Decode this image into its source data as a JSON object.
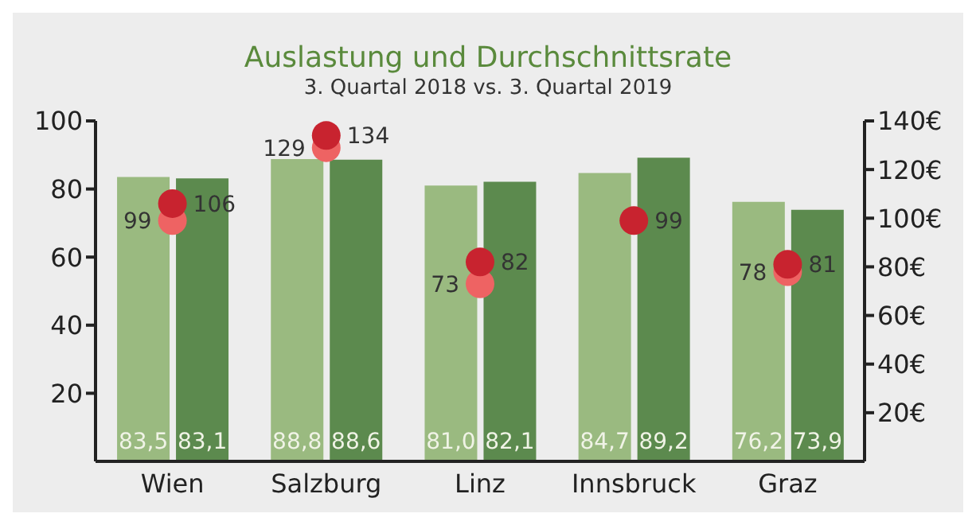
{
  "chart_data": {
    "type": "bar",
    "title": "Auslastung und Durchschnittsrate",
    "subtitle": "3. Quartal 2018 vs. 3. Quartal 2019",
    "categories": [
      "Wien",
      "Salzburg",
      "Linz",
      "Innsbruck",
      "Graz"
    ],
    "series": [
      {
        "color": "#9aba80",
        "values": [
          83.5,
          88.8,
          81.0,
          84.7,
          76.2
        ],
        "value_labels": [
          "83,5",
          "88,8",
          "81,0",
          "84,7",
          "76,2"
        ]
      },
      {
        "color": "#5c8a4e",
        "values": [
          83.1,
          88.6,
          82.1,
          89.2,
          73.9
        ],
        "value_labels": [
          "83,1",
          "88,6",
          "82,1",
          "89,2",
          "73,9"
        ]
      },
      {
        "type": "scatter",
        "axis": "y2",
        "color": "#ee6363",
        "values": [
          99,
          129,
          73,
          null,
          78
        ],
        "value_labels": [
          "99",
          "129",
          "73",
          null,
          "78"
        ]
      },
      {
        "type": "scatter",
        "axis": "y2",
        "color": "#c8232f",
        "values": [
          106,
          134,
          82,
          99,
          81
        ],
        "value_labels": [
          "106",
          "134",
          "82",
          "99",
          "81"
        ]
      }
    ],
    "ylim": [
      0,
      100
    ],
    "yticks": [
      20,
      40,
      60,
      80,
      100
    ],
    "y2lim": [
      0,
      140
    ],
    "y2ticks": [
      {
        "value": 20,
        "label": "20€"
      },
      {
        "value": 40,
        "label": "40€"
      },
      {
        "value": 60,
        "label": "60€"
      },
      {
        "value": 80,
        "label": "80€"
      },
      {
        "value": 100,
        "label": "100€"
      },
      {
        "value": 120,
        "label": "120€"
      },
      {
        "value": 140,
        "label": "140€"
      }
    ],
    "marker": "circle"
  }
}
